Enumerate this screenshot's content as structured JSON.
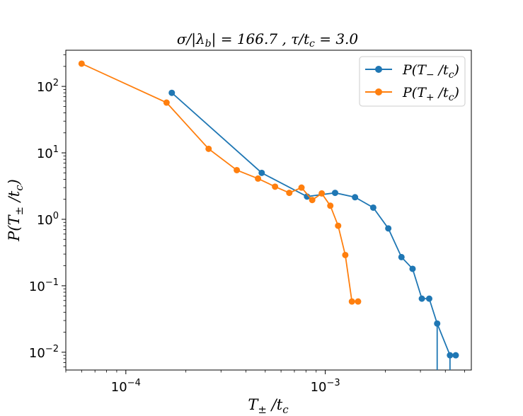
{
  "chart_data": {
    "type": "line",
    "title": "σ/|λ_b| = 166.7 , τ/t_c = 3.0",
    "xlabel": "T± / t_c",
    "ylabel": "P(T± / t_c)",
    "xscale": "log",
    "yscale": "log",
    "xlim": [
      5e-05,
      0.0054
    ],
    "ylim": [
      0.0054,
      350
    ],
    "x_ticks": [
      {
        "value": 0.0001,
        "base": "10",
        "exp": "−4"
      },
      {
        "value": 0.001,
        "base": "10",
        "exp": "−3"
      }
    ],
    "y_ticks": [
      {
        "value": 0.01,
        "base": "10",
        "exp": "−2"
      },
      {
        "value": 0.1,
        "base": "10",
        "exp": "−1"
      },
      {
        "value": 1,
        "base": "10",
        "exp": "0"
      },
      {
        "value": 10,
        "base": "10",
        "exp": "1"
      },
      {
        "value": 100,
        "base": "10",
        "exp": "2"
      }
    ],
    "legend_position": "top-right",
    "series": [
      {
        "name": "P(T− / t_c)",
        "color": "#1f77b4",
        "x": [
          0.00017,
          0.00048,
          0.00081,
          0.00112,
          0.00141,
          0.00174,
          0.00207,
          0.00241,
          0.00274,
          0.00305,
          0.00332,
          0.00364,
          0.00422,
          0.00451
        ],
        "y": [
          80,
          5.0,
          2.2,
          2.5,
          2.15,
          1.5,
          0.73,
          0.27,
          0.18,
          0.064,
          0.064,
          0.027,
          0.009,
          0.009
        ]
      },
      {
        "name": "P(T+ / t_c)",
        "color": "#ff7f0e",
        "x": [
          6e-05,
          0.00016,
          0.00026,
          0.00036,
          0.00046,
          0.00056,
          0.00066,
          0.00076,
          0.00086,
          0.00096,
          0.00106,
          0.00116,
          0.00126,
          0.00136,
          0.00146
        ],
        "y": [
          220,
          57,
          11.5,
          5.5,
          4.1,
          3.1,
          2.5,
          3.0,
          1.95,
          2.45,
          1.6,
          0.8,
          0.29,
          0.058,
          0.058
        ]
      }
    ]
  }
}
